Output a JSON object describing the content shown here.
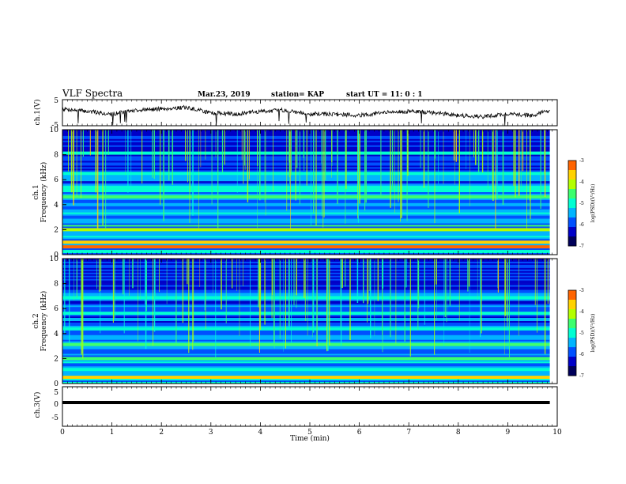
{
  "header": {
    "title": "VLF Spectra",
    "date": "Mar.23, 2019",
    "station": "station= KAP",
    "start": "start  UT =   11: 0  : 1"
  },
  "colors": {
    "line": "#000000",
    "colormap": [
      "#00005a",
      "#0000c8",
      "#0050ff",
      "#00b4ff",
      "#00ffd2",
      "#3cff6e",
      "#b4ff00",
      "#ffd200",
      "#ff6400",
      "#e60000",
      "#ffffff"
    ]
  },
  "chart_data": [
    {
      "type": "line",
      "panel": "ch1-waveform",
      "ylabel": "ch.1(V)",
      "ylim": [
        -5,
        5
      ],
      "yticks": [
        "5",
        "-5"
      ],
      "xlim": [
        0,
        10
      ],
      "series": [
        {
          "values_note_free": true,
          "x": [
            0,
            0.5,
            1,
            1.5,
            2,
            2.5,
            3,
            3.5,
            4,
            4.5,
            5,
            5.5,
            6,
            6.5,
            7,
            7.5,
            8,
            8.5,
            9,
            9.5,
            9.85
          ],
          "y": [
            1.5,
            0.5,
            -0.5,
            1.0,
            1.5,
            2.0,
            0.0,
            -0.5,
            0.5,
            1.0,
            -0.5,
            -0.5,
            -1.0,
            0.0,
            0.5,
            0.0,
            -1.0,
            -1.5,
            -0.5,
            -1.0,
            1.0
          ]
        }
      ]
    },
    {
      "type": "heatmap",
      "panel": "ch1-spectrogram",
      "ylabel_line1": "ch.1",
      "ylabel_line2": "Frequency  (kHz)",
      "ylim": [
        0,
        10
      ],
      "yticks": [
        "0",
        "2",
        "4",
        "6",
        "8",
        "10"
      ],
      "xlim": [
        0,
        9.85
      ],
      "bands_khz": [
        {
          "f": 0.6,
          "level": -3.4
        },
        {
          "f": 1.0,
          "level": -3.8
        },
        {
          "f": 2.0,
          "level": -3.9
        },
        {
          "f": 2.3,
          "level": -4.6
        },
        {
          "f": 3.3,
          "level": -4.8
        },
        {
          "f": 4.6,
          "level": -4.7
        },
        {
          "f": 5.1,
          "level": -5.0
        },
        {
          "f": 5.4,
          "level": -4.9
        },
        {
          "f": 6.5,
          "level": -4.9
        },
        {
          "f": 8.1,
          "level": -5.1
        }
      ],
      "colorbar": {
        "label": "log(PSD)(V²/Hz)",
        "ticks": [
          "-3",
          "-4",
          "-5",
          "-6",
          "-7"
        ],
        "range": [
          -7,
          -3
        ]
      }
    },
    {
      "type": "heatmap",
      "panel": "ch2-spectrogram",
      "ylabel_line1": "ch.2",
      "ylabel_line2": "Frequency  (kHz)",
      "ylim": [
        0,
        10
      ],
      "yticks": [
        "0",
        "2",
        "4",
        "6",
        "8",
        "10"
      ],
      "xlim": [
        0,
        9.85
      ],
      "bands_khz": [
        {
          "f": 0.5,
          "level": -3.6
        },
        {
          "f": 1.2,
          "level": -4.8
        },
        {
          "f": 2.0,
          "level": -4.5
        },
        {
          "f": 3.1,
          "level": -4.7
        },
        {
          "f": 4.4,
          "level": -4.9
        },
        {
          "f": 5.6,
          "level": -5.0
        },
        {
          "f": 6.9,
          "level": -5.1
        }
      ],
      "colorbar": {
        "label": "log(PSD)(V²/Hz)",
        "ticks": [
          "-3",
          "-4",
          "-5",
          "-6",
          "-7"
        ],
        "range": [
          -7,
          -3
        ]
      }
    },
    {
      "type": "line",
      "panel": "ch3-waveform",
      "ylabel": "ch.3(V)",
      "ylim": [
        -5,
        5
      ],
      "yticks": [
        "5",
        "0",
        "-5"
      ],
      "xlim": [
        0,
        10
      ],
      "series": [
        {
          "x": [
            0,
            9.85
          ],
          "y": [
            1.0,
            1.0
          ]
        }
      ]
    }
  ],
  "xaxis": {
    "label": "Time  (min)",
    "ticks": [
      "0",
      "1",
      "2",
      "3",
      "4",
      "5",
      "6",
      "7",
      "8",
      "9",
      "10"
    ],
    "xlim": [
      0,
      10
    ]
  }
}
